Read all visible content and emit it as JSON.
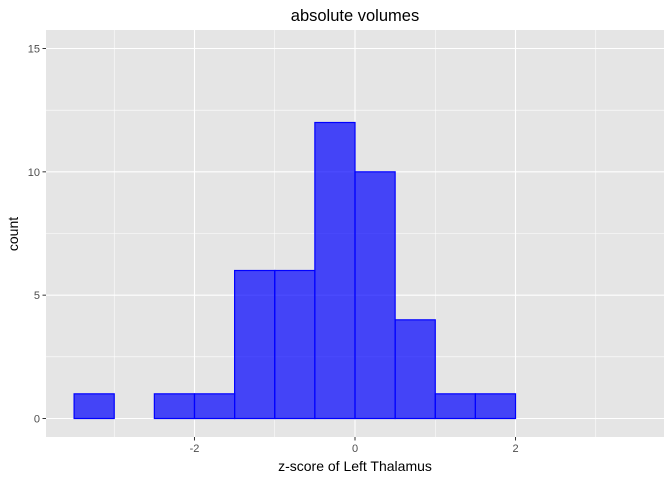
{
  "chart_data": {
    "type": "bar",
    "title": "absolute volumes",
    "xlabel": "z-score of Left Thalamus",
    "ylabel": "count",
    "bin_width": 0.5,
    "bin_edges": [
      -3.5,
      -3.0,
      -2.5,
      -2.0,
      -1.5,
      -1.0,
      -0.5,
      0.0,
      0.5,
      1.0,
      1.5,
      2.0,
      2.5,
      3.0,
      3.5
    ],
    "counts": [
      1,
      0,
      1,
      1,
      6,
      6,
      12,
      10,
      4,
      1,
      1,
      0,
      0,
      0
    ],
    "xlim": [
      -3.85,
      3.85
    ],
    "ylim": [
      -0.75,
      15.75
    ],
    "x_major_ticks": [
      -2,
      0,
      2
    ],
    "x_major_tick_labels": [
      "-2",
      "0",
      "2"
    ],
    "x_minor_ticks": [
      -3,
      -1,
      1,
      3
    ],
    "y_major_ticks": [
      0,
      5,
      10,
      15
    ],
    "y_major_tick_labels": [
      "0",
      "5",
      "10",
      "15"
    ],
    "y_minor_ticks": [
      2.5,
      7.5,
      12.5
    ],
    "grid": true,
    "colors": {
      "panel_background": "#e5e5e5",
      "grid": "#ffffff",
      "bar_fill": "#0000ff",
      "bar_fill_opacity": 0.7,
      "bar_outline": "#0000ff",
      "tick_label": "#4d4d4d",
      "text": "#000000"
    }
  }
}
